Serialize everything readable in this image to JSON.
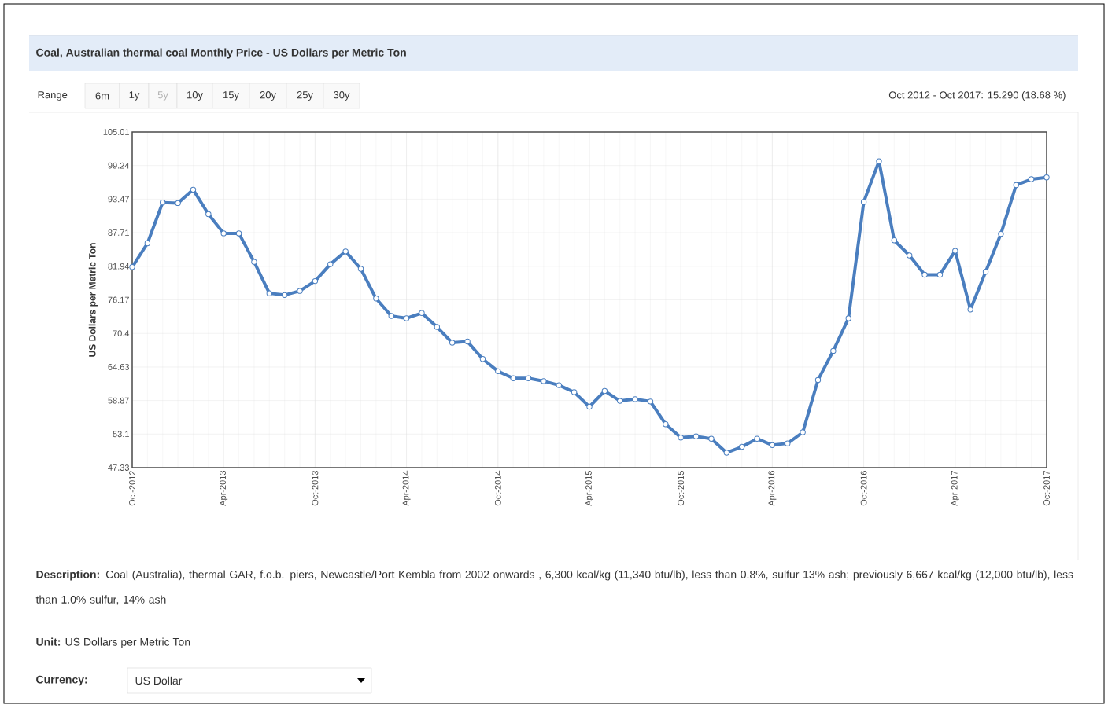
{
  "chart_data": {
    "type": "line",
    "title": "Coal, Australian thermal coal Monthly Price - US Dollars per Metric Ton",
    "ylabel": "US Dollars per Metric Ton",
    "x": [
      "2012-10",
      "2012-11",
      "2012-12",
      "2013-01",
      "2013-02",
      "2013-03",
      "2013-04",
      "2013-05",
      "2013-06",
      "2013-07",
      "2013-08",
      "2013-09",
      "2013-10",
      "2013-11",
      "2013-12",
      "2014-01",
      "2014-02",
      "2014-03",
      "2014-04",
      "2014-05",
      "2014-06",
      "2014-07",
      "2014-08",
      "2014-09",
      "2014-10",
      "2014-11",
      "2014-12",
      "2015-01",
      "2015-02",
      "2015-03",
      "2015-04",
      "2015-05",
      "2015-06",
      "2015-07",
      "2015-08",
      "2015-09",
      "2015-10",
      "2015-11",
      "2015-12",
      "2016-01",
      "2016-02",
      "2016-03",
      "2016-04",
      "2016-05",
      "2016-06",
      "2016-07",
      "2016-08",
      "2016-09",
      "2016-10",
      "2016-11",
      "2016-12",
      "2017-01",
      "2017-02",
      "2017-03",
      "2017-04",
      "2017-05",
      "2017-06",
      "2017-07",
      "2017-08",
      "2017-09",
      "2017-10"
    ],
    "series": [
      {
        "color": "#4a7ebf",
        "values": [
          81.8,
          85.9,
          92.9,
          92.8,
          95.1,
          90.9,
          87.6,
          87.6,
          82.7,
          77.3,
          77.0,
          77.7,
          79.4,
          82.3,
          84.5,
          81.5,
          76.4,
          73.4,
          73.0,
          73.9,
          71.5,
          68.8,
          69.0,
          66.0,
          63.9,
          62.7,
          62.7,
          62.2,
          61.5,
          60.3,
          57.8,
          60.5,
          58.8,
          59.1,
          58.7,
          54.8,
          52.5,
          52.7,
          52.3,
          49.9,
          50.9,
          52.3,
          51.2,
          51.5,
          53.4,
          62.4,
          67.4,
          73.0,
          93.0,
          100.0,
          86.4,
          83.8,
          80.5,
          80.5,
          84.6,
          74.5,
          81.0,
          87.5,
          95.9,
          96.9,
          97.2
        ]
      }
    ],
    "xlim": [
      "2012-10",
      "2017-10"
    ],
    "xticks": [
      {
        "value": "2012-10",
        "label": "Oct-2012"
      },
      {
        "value": "2013-04",
        "label": "Apr-2013"
      },
      {
        "value": "2013-10",
        "label": "Oct-2013"
      },
      {
        "value": "2014-04",
        "label": "Apr-2014"
      },
      {
        "value": "2014-10",
        "label": "Oct-2014"
      },
      {
        "value": "2015-04",
        "label": "Apr-2015"
      },
      {
        "value": "2015-10",
        "label": "Oct-2015"
      },
      {
        "value": "2016-04",
        "label": "Apr-2016"
      },
      {
        "value": "2016-10",
        "label": "Oct-2016"
      },
      {
        "value": "2017-04",
        "label": "Apr-2017"
      },
      {
        "value": "2017-10",
        "label": "Oct-2017"
      }
    ],
    "ylim": [
      47.33,
      105.01
    ],
    "yticks": [
      47.33,
      53.1,
      58.87,
      64.63,
      70.4,
      76.17,
      81.94,
      87.71,
      93.47,
      99.24,
      105.01
    ],
    "grid": true,
    "marker": "circle",
    "line_style": "solid",
    "annotations": [
      "Oct 2012 - Oct 2017: 15.290 (18.68 %)",
      "Range",
      "6m",
      "1y",
      "5y",
      "10y",
      "15y",
      "20y",
      "25y",
      "30y",
      "**Description:** Coal (Australia), thermal GAR, f.o.b. piers, Newcastle/Port Kembla from 2002 onwards , 6,300 kcal/kg (11,340 btu/lb), less than 0.8%, sulfur 13% ash; previously 6,667 kcal/kg (12,000 btu/lb), less than 1.0% sulfur, 14% ash",
      "**Unit:** US Dollars per Metric Ton",
      "**Currency:**",
      "US Dollar"
    ]
  }
}
